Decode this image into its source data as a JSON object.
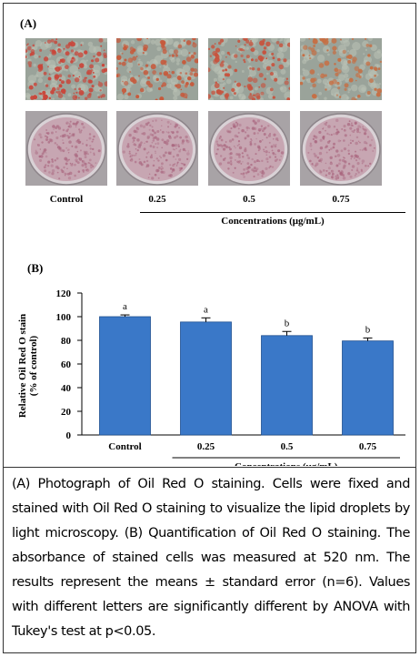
{
  "panel_a": {
    "label": "(A)",
    "columns": [
      {
        "label": "Control",
        "stain": "#c9463a",
        "density": 0.85
      },
      {
        "label": "0.25",
        "stain": "#c65a3c",
        "density": 0.65
      },
      {
        "label": "0.5",
        "stain": "#c7533e",
        "density": 0.7
      },
      {
        "label": "0.75",
        "stain": "#c66f44",
        "density": 0.5
      }
    ],
    "concentrations_label": "Concentrations (μg/mL)"
  },
  "panel_b": {
    "label": "(B)"
  },
  "chart_data": {
    "type": "bar",
    "categories": [
      "Control",
      "0.25",
      "0.5",
      "0.75"
    ],
    "values": [
      100,
      95.5,
      84,
      79.5
    ],
    "errors": [
      1.5,
      3.5,
      3.5,
      2.5
    ],
    "letters": [
      "a",
      "a",
      "b",
      "b"
    ],
    "ylabel": "Relative Oil Red O stain\n(% of control)",
    "ylim": [
      0,
      120
    ],
    "yticks": [
      0,
      20,
      40,
      60,
      80,
      100,
      120
    ],
    "xlabel": "Concentrations (μg/mL)",
    "grid": false,
    "bar_color": "#3a78c8"
  },
  "caption": "(A) Photograph of Oil Red O staining. Cells were fixed and stained with Oil Red O staining to visualize the lipid droplets by light microscopy. (B) Quantification of Oil Red O staining. The absorbance of stained cells was measured at 520 nm. The results represent the means ± standard error (n=6). Values with different letters are significantly different by ANOVA with Tukey's test at p<0.05."
}
